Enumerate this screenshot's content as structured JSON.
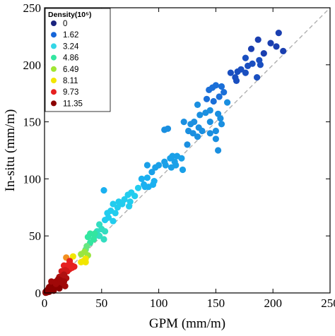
{
  "chart_data": {
    "type": "scatter",
    "xlabel": "GPM (mm/m)",
    "ylabel": "In-situ (mm/m)",
    "xlim": [
      0,
      250
    ],
    "ylim": [
      0,
      250
    ],
    "xticks": [
      0,
      50,
      100,
      150,
      200,
      250
    ],
    "yticks": [
      0,
      50,
      100,
      150,
      200,
      250
    ],
    "reference_line": {
      "style": "dashed",
      "color": "#aaaaaa",
      "from": [
        0,
        0
      ],
      "to": [
        250,
        250
      ]
    },
    "legend": {
      "title": "Density(10⁵)",
      "placement": "top-left",
      "entries": [
        {
          "label": "0",
          "color": "#1a237e"
        },
        {
          "label": "1.62",
          "color": "#1565d8"
        },
        {
          "label": "3.24",
          "color": "#33d6e6"
        },
        {
          "label": "4.86",
          "color": "#33e6a0"
        },
        {
          "label": "6.49",
          "color": "#a0e633"
        },
        {
          "label": "8.11",
          "color": "#f2e600"
        },
        {
          "label": "9.73",
          "color": "#e62020"
        },
        {
          "label": "11.35",
          "color": "#8b0000"
        }
      ]
    },
    "points": [
      [
        205,
        228,
        "#1a3fb0"
      ],
      [
        198,
        219,
        "#1a3fb0"
      ],
      [
        187,
        222,
        "#1a3fb0"
      ],
      [
        209,
        212,
        "#1a3fb0"
      ],
      [
        203,
        216,
        "#1a3fb0"
      ],
      [
        181,
        214,
        "#1a3fb0"
      ],
      [
        192,
        210,
        "#1a3fb0"
      ],
      [
        176,
        206,
        "#1a4fc0"
      ],
      [
        188,
        204,
        "#1a4fc0"
      ],
      [
        182,
        201,
        "#1a4fc0"
      ],
      [
        189,
        200,
        "#1a4fc0"
      ],
      [
        178,
        199,
        "#1a4fc0"
      ],
      [
        172,
        196,
        "#1a4fc0"
      ],
      [
        176,
        193,
        "#1a4fc0"
      ],
      [
        186,
        189,
        "#1a4fc0"
      ],
      [
        169,
        194,
        "#1a4fc0"
      ],
      [
        163,
        193,
        "#1a4fc0"
      ],
      [
        167,
        189,
        "#1a4fc0"
      ],
      [
        168,
        186,
        "#1a4fc0"
      ],
      [
        150,
        182,
        "#1a6fd8"
      ],
      [
        155,
        181,
        "#1a6fd8"
      ],
      [
        147,
        180,
        "#1a6fd8"
      ],
      [
        144,
        178,
        "#1a6fd8"
      ],
      [
        157,
        176,
        "#1a6fd8"
      ],
      [
        153,
        172,
        "#1a6fd8"
      ],
      [
        148,
        168,
        "#1a6fd8"
      ],
      [
        142,
        170,
        "#1a6fd8"
      ],
      [
        134,
        165,
        "#1a8fe0"
      ],
      [
        160,
        167,
        "#1a8fe0"
      ],
      [
        145,
        160,
        "#1a8fe0"
      ],
      [
        141,
        158,
        "#1a8fe0"
      ],
      [
        152,
        157,
        "#1a8fe0"
      ],
      [
        136,
        156,
        "#1a8fe0"
      ],
      [
        154,
        153,
        "#1a8fe0"
      ],
      [
        145,
        150,
        "#1a8fe0"
      ],
      [
        155,
        148,
        "#1a8fe0"
      ],
      [
        131,
        150,
        "#1a8fe0"
      ],
      [
        128,
        148,
        "#1a8fe0"
      ],
      [
        135,
        145,
        "#1a8fe0"
      ],
      [
        126,
        142,
        "#1a8fe0"
      ],
      [
        130,
        140,
        "#1a8fe0"
      ],
      [
        138,
        142,
        "#1a8fe0"
      ],
      [
        145,
        140,
        "#1a8fe0"
      ],
      [
        150,
        142,
        "#1a8fe0"
      ],
      [
        122,
        150,
        "#1a8fe0"
      ],
      [
        108,
        144,
        "#1a8fe0"
      ],
      [
        105,
        143,
        "#1a8fe0"
      ],
      [
        134,
        137,
        "#1a8fe0"
      ],
      [
        150,
        135,
        "#1a8fe0"
      ],
      [
        125,
        130,
        "#1a8fe0"
      ],
      [
        152,
        125,
        "#1a8fe0"
      ],
      [
        112,
        120,
        "#1aa0e8"
      ],
      [
        116,
        120,
        "#1aa0e8"
      ],
      [
        110,
        118,
        "#1aa0e8"
      ],
      [
        120,
        118,
        "#1aa0e8"
      ],
      [
        114,
        115,
        "#1aa0e8"
      ],
      [
        105,
        115,
        "#1aa0e8"
      ],
      [
        106,
        112,
        "#1aa0e8"
      ],
      [
        100,
        112,
        "#1aa0e8"
      ],
      [
        115,
        112,
        "#1aa0e8"
      ],
      [
        111,
        110,
        "#1aa0e8"
      ],
      [
        121,
        108,
        "#1aa0e8"
      ],
      [
        97,
        110,
        "#1aa0e8"
      ],
      [
        90,
        112,
        "#1aa0e8"
      ],
      [
        94,
        106,
        "#1aa0e8"
      ],
      [
        90,
        101,
        "#1ab0f0"
      ],
      [
        85,
        100,
        "#1ab0f0"
      ],
      [
        96,
        98,
        "#1ab0f0"
      ],
      [
        87,
        95,
        "#1ab0f0"
      ],
      [
        95,
        95,
        "#1ab0f0"
      ],
      [
        91,
        93,
        "#1ab0f0"
      ],
      [
        88,
        93,
        "#1ab0f0"
      ],
      [
        52,
        90,
        "#1ab0f0"
      ],
      [
        82,
        92,
        "#22ccee"
      ],
      [
        76,
        88,
        "#22ccee"
      ],
      [
        79,
        85,
        "#22ccee"
      ],
      [
        73,
        86,
        "#22ccee"
      ],
      [
        75,
        80,
        "#22ccee"
      ],
      [
        70,
        82,
        "#22ccee"
      ],
      [
        68,
        78,
        "#22ccee"
      ],
      [
        74,
        76,
        "#22ccee"
      ],
      [
        65,
        80,
        "#22ccee"
      ],
      [
        64,
        75,
        "#22ccee"
      ],
      [
        60,
        78,
        "#22ccee"
      ],
      [
        58,
        72,
        "#22ccee"
      ],
      [
        62,
        70,
        "#22ccee"
      ],
      [
        55,
        70,
        "#22ccee"
      ],
      [
        56,
        66,
        "#22ccee"
      ],
      [
        53,
        64,
        "#22ccee"
      ],
      [
        60,
        63,
        "#22ccee"
      ],
      [
        48,
        60,
        "#33ddc0"
      ],
      [
        50,
        56,
        "#33ddc0"
      ],
      [
        53,
        54,
        "#33ddc0"
      ],
      [
        46,
        54,
        "#33ddc0"
      ],
      [
        44,
        50,
        "#33ddc0"
      ],
      [
        48,
        50,
        "#33ddc0"
      ],
      [
        52,
        47,
        "#33ddc0"
      ],
      [
        40,
        52,
        "#33e6a0"
      ],
      [
        44,
        52,
        "#33e6a0"
      ],
      [
        38,
        49,
        "#33e6a0"
      ],
      [
        43,
        47,
        "#33e6a0"
      ],
      [
        40,
        44,
        "#33e6a0"
      ],
      [
        37,
        41,
        "#66e680"
      ],
      [
        36,
        38,
        "#66e680"
      ],
      [
        35,
        36,
        "#99e640"
      ],
      [
        38,
        33,
        "#99e640"
      ],
      [
        32,
        34,
        "#99e640"
      ],
      [
        25,
        32,
        "#f2e600"
      ],
      [
        36,
        30,
        "#f2e600"
      ],
      [
        34,
        28,
        "#f2e600"
      ],
      [
        32,
        27,
        "#f2e600"
      ],
      [
        36,
        27,
        "#f2e600"
      ],
      [
        19,
        31,
        "#f29020"
      ],
      [
        22,
        28,
        "#e62020"
      ],
      [
        24,
        24,
        "#e62020"
      ],
      [
        20,
        24,
        "#e62020"
      ],
      [
        17,
        24,
        "#e62020"
      ],
      [
        22,
        21,
        "#e62020"
      ],
      [
        18,
        20,
        "#d01818"
      ],
      [
        20,
        19,
        "#d01818"
      ],
      [
        15,
        19,
        "#d01818"
      ],
      [
        24,
        22,
        "#e62020"
      ],
      [
        26,
        23,
        "#e62020"
      ],
      [
        17,
        16,
        "#b01010"
      ],
      [
        13,
        14,
        "#b01010"
      ],
      [
        16,
        13,
        "#b01010"
      ],
      [
        19,
        13,
        "#b01010"
      ],
      [
        12,
        12,
        "#a00808"
      ],
      [
        14,
        11,
        "#a00808"
      ],
      [
        10,
        10,
        "#a00808"
      ],
      [
        17,
        10,
        "#a00808"
      ],
      [
        8,
        9,
        "#a00808"
      ],
      [
        12,
        8,
        "#a00808"
      ],
      [
        15,
        8,
        "#a00808"
      ],
      [
        6,
        7,
        "#8b0000"
      ],
      [
        9,
        6,
        "#8b0000"
      ],
      [
        11,
        5,
        "#8b0000"
      ],
      [
        4,
        5,
        "#8b0000"
      ],
      [
        7,
        4,
        "#8b0000"
      ],
      [
        3,
        3,
        "#8b0000"
      ],
      [
        5,
        3,
        "#8b0000"
      ],
      [
        2,
        2,
        "#8b0000"
      ],
      [
        8,
        2,
        "#8b0000"
      ],
      [
        1,
        1,
        "#8b0000"
      ],
      [
        4,
        1,
        "#8b0000"
      ],
      [
        2,
        0.5,
        "#8b0000"
      ],
      [
        1,
        0.2,
        "#8b0000"
      ],
      [
        13,
        4,
        "#8b0000"
      ],
      [
        10,
        8,
        "#a00808"
      ],
      [
        6,
        10,
        "#a00808"
      ],
      [
        18,
        6,
        "#a00808"
      ]
    ]
  }
}
